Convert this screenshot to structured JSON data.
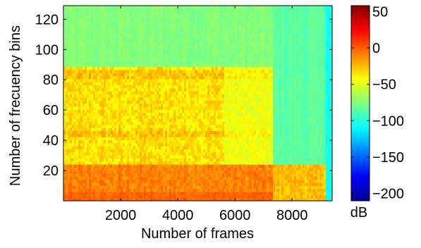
{
  "chart_data": {
    "type": "heatmap",
    "title": "",
    "xlabel": "Number of frames",
    "ylabel": "Number of frecuency bins",
    "xlim": [
      0,
      9400
    ],
    "ylim": [
      0,
      129
    ],
    "x_ticks": [
      2000,
      4000,
      6000,
      8000
    ],
    "x_tick_labels": [
      "2000",
      "4000",
      "6000",
      "8000"
    ],
    "y_ticks": [
      20,
      40,
      60,
      80,
      100,
      120
    ],
    "y_tick_labels": [
      "20",
      "40",
      "60",
      "80",
      "100",
      "120"
    ],
    "colorbar": {
      "label": "dB",
      "range": [
        -210,
        58
      ],
      "ticks": [
        50,
        0,
        -50,
        -100,
        -150,
        -200
      ],
      "tick_labels": [
        "50",
        "0",
        "−50",
        "−100",
        "−150",
        "−200"
      ],
      "colormap": "jet"
    },
    "description_values": {
      "low_freq_band_db": -10,
      "mid_freq_band_db": -35,
      "high_freq_band_db": -75,
      "late_segment_high_freq_db": -85
    },
    "grid": false
  }
}
